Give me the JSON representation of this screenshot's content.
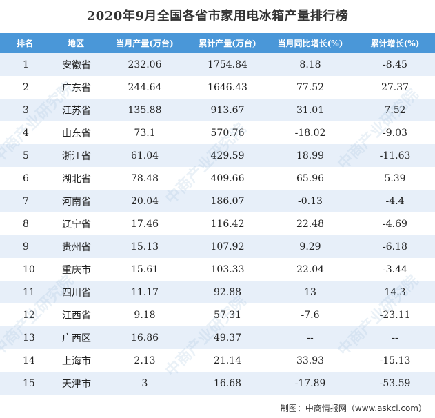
{
  "title": "2020年9月全国各省市家用电冰箱产量排行榜",
  "headers": [
    "排名",
    "地区",
    "当月产量(万台)",
    "累计产量(万台)",
    "当月同比增长(%)",
    "累计增长(%)"
  ],
  "rows": [
    [
      "1",
      "安徽省",
      "232.06",
      "1754.84",
      "8.18",
      "-8.45"
    ],
    [
      "2",
      "广东省",
      "244.64",
      "1646.43",
      "77.52",
      "27.37"
    ],
    [
      "3",
      "江苏省",
      "135.88",
      "913.67",
      "31.01",
      "7.52"
    ],
    [
      "4",
      "山东省",
      "73.1",
      "570.76",
      "-18.02",
      "-9.03"
    ],
    [
      "5",
      "浙江省",
      "61.04",
      "429.59",
      "18.99",
      "-11.63"
    ],
    [
      "6",
      "湖北省",
      "78.48",
      "409.66",
      "65.96",
      "5.39"
    ],
    [
      "7",
      "河南省",
      "20.04",
      "186.07",
      "-0.13",
      "-4.4"
    ],
    [
      "8",
      "辽宁省",
      "17.46",
      "116.42",
      "22.48",
      "-4.69"
    ],
    [
      "9",
      "贵州省",
      "15.13",
      "107.92",
      "9.29",
      "-6.18"
    ],
    [
      "10",
      "重庆市",
      "15.61",
      "103.33",
      "22.04",
      "-3.44"
    ],
    [
      "11",
      "四川省",
      "11.17",
      "92.88",
      "13",
      "14.3"
    ],
    [
      "12",
      "江西省",
      "9.18",
      "57.31",
      "-7.6",
      "-23.11"
    ],
    [
      "13",
      "广西区",
      "16.86",
      "49.37",
      "--",
      "--"
    ],
    [
      "14",
      "上海市",
      "2.13",
      "21.14",
      "33.93",
      "-15.13"
    ],
    [
      "15",
      "天津市",
      "3",
      "16.68",
      "-17.89",
      "-53.59"
    ]
  ],
  "source": "制图：中商情报网（www.askci.com）",
  "watermark": "中商产业研究院"
}
